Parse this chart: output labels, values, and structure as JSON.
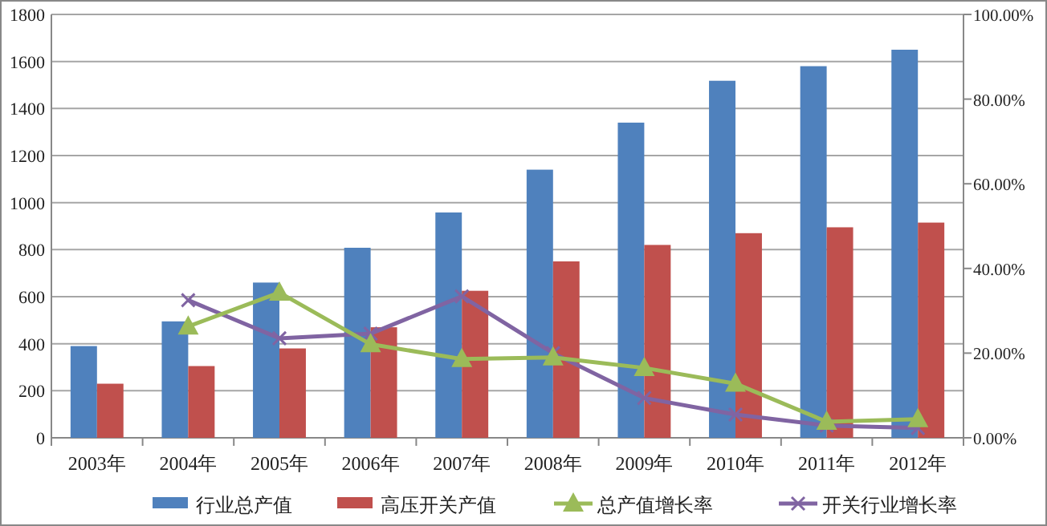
{
  "chart_data": {
    "type": "bar",
    "categories": [
      "2003年",
      "2004年",
      "2005年",
      "2006年",
      "2007年",
      "2008年",
      "2009年",
      "2010年",
      "2011年",
      "2012年"
    ],
    "series": [
      {
        "name": "行业总产值",
        "color": "#4f81bd",
        "values": [
          390,
          495,
          660,
          808,
          958,
          1140,
          1340,
          1518,
          1580,
          1650
        ]
      },
      {
        "name": "高压开关产值",
        "color": "#c0504d",
        "values": [
          230,
          305,
          380,
          470,
          625,
          750,
          820,
          870,
          895,
          915
        ]
      },
      {
        "name": "总产值增长率",
        "type": "line",
        "axis": "y2",
        "marker": "triangle",
        "color": "#9bbb59",
        "values": [
          null,
          26.3,
          34.3,
          22.1,
          18.6,
          19.0,
          16.5,
          12.8,
          3.8,
          4.4
        ]
      },
      {
        "name": "开关行业增长率",
        "type": "line",
        "axis": "y2",
        "marker": "cross",
        "color": "#8064a2",
        "values": [
          null,
          32.5,
          23.5,
          24.6,
          33.4,
          20.0,
          9.4,
          5.5,
          2.9,
          2.3
        ]
      }
    ],
    "ylim": [
      0,
      1800
    ],
    "yticks": [
      0,
      200,
      400,
      600,
      800,
      1000,
      1200,
      1400,
      1600,
      1800
    ],
    "y2lim": [
      0,
      100
    ],
    "y2ticks": [
      {
        "value": 0,
        "label": "0.00%"
      },
      {
        "value": 20,
        "label": "20.00%"
      },
      {
        "value": 40,
        "label": "40.00%"
      },
      {
        "value": 60,
        "label": "60.00%"
      },
      {
        "value": 80,
        "label": "80.00%"
      },
      {
        "value": 100,
        "label": "100.00%"
      }
    ],
    "grid": "y",
    "legend": "bottom"
  }
}
